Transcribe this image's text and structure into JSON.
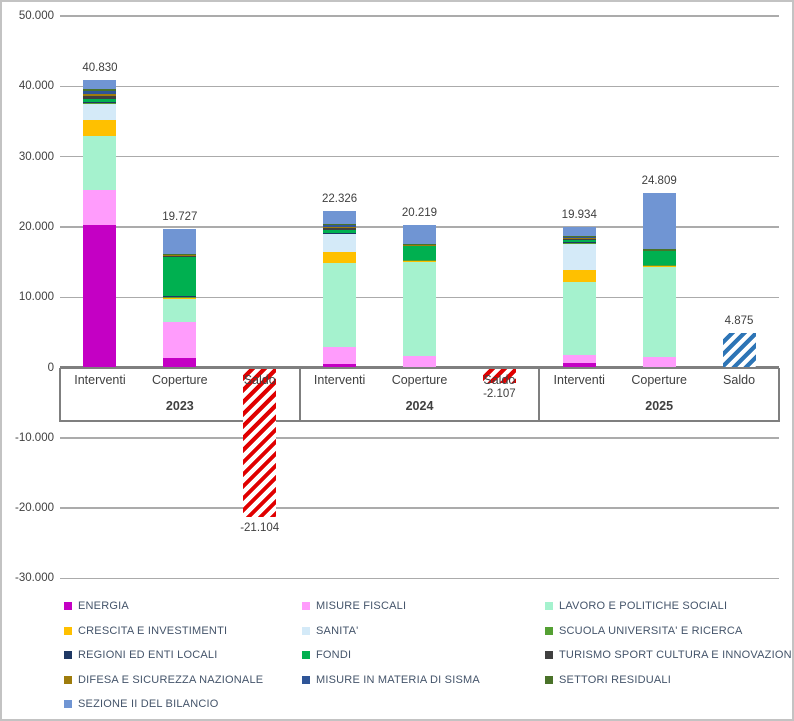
{
  "chart_data": {
    "type": "bar",
    "subtype": "stacked-column-with-hatched-saldo",
    "title": "",
    "xlabel": "",
    "ylabel": "",
    "ylim": [
      -30000,
      50000
    ],
    "grid": "horizontal",
    "legend_position": "bottom",
    "number_format": "it-IT thousands with dot",
    "axis_ticks": [
      {
        "value": 50000,
        "label": "50.000"
      },
      {
        "value": 40000,
        "label": "40.000"
      },
      {
        "value": 30000,
        "label": "30.000"
      },
      {
        "value": 20000,
        "label": "20.000"
      },
      {
        "value": 10000,
        "label": "10.000"
      },
      {
        "value": 0,
        "label": "0"
      },
      {
        "value": -10000,
        "label": "-10.000"
      },
      {
        "value": -20000,
        "label": "-20.000"
      },
      {
        "value": -30000,
        "label": "-30.000"
      }
    ],
    "series": [
      {
        "name": "ENERGIA",
        "color": "#c400c4"
      },
      {
        "name": "MISURE FISCALI",
        "color": "#ff9cfc"
      },
      {
        "name": "LAVORO E POLITICHE SOCIALI",
        "color": "#a5f2ce"
      },
      {
        "name": "CRESCITA E INVESTIMENTI",
        "color": "#ffc000"
      },
      {
        "name": "SANITA'",
        "color": "#d4eaf8"
      },
      {
        "name": "SCUOLA UNIVERSITA' E RICERCA",
        "color": "#54a033"
      },
      {
        "name": "REGIONI ED ENTI LOCALI",
        "color": "#1f3864"
      },
      {
        "name": "FONDI",
        "color": "#00b050"
      },
      {
        "name": "TURISMO SPORT CULTURA E INNOVAZIONE",
        "color": "#404040"
      },
      {
        "name": "DIFESA E SICUREZZA NAZIONALE",
        "color": "#9e7c0c"
      },
      {
        "name": "MISURE IN MATERIA DI SISMA",
        "color": "#2f5597"
      },
      {
        "name": "SETTORI RESIDUALI",
        "color": "#4a7229"
      },
      {
        "name": "SEZIONE II DEL BILANCIO",
        "color": "#7095d3"
      }
    ],
    "hatch_colors": {
      "red": "#e00000",
      "blue": "#2e75b6"
    },
    "groups": [
      {
        "year": "2023",
        "bars": [
          {
            "label": "Interventi",
            "total": 40830,
            "total_label": "40.830",
            "segments": {
              "ENERGIA": 20200,
              "MISURE FISCALI": 5000,
              "LAVORO E POLITICHE SOCIALI": 7700,
              "CRESCITA E INVESTIMENTI": 2350,
              "SANITA'": 2230,
              "SCUOLA UNIVERSITA' E RICERCA": 150,
              "REGIONI ED ENTI LOCALI": 200,
              "FONDI": 380,
              "TURISMO SPORT CULTURA E INNOVAZIONE": 470,
              "DIFESA E SICUREZZA NAZIONALE": 280,
              "MISURE IN MATERIA DI SISMA": 400,
              "SETTORI RESIDUALI": 190,
              "SEZIONE II DEL BILANCIO": 1280
            }
          },
          {
            "label": "Coperture",
            "total": 19727,
            "total_label": "19.727",
            "segments": {
              "ENERGIA": 1400,
              "MISURE FISCALI": 5100,
              "LAVORO E POLITICHE SOCIALI": 3300,
              "CRESCITA E INVESTIMENTI": 150,
              "SCUOLA UNIVERSITA' E RICERCA": 100,
              "REGIONI ED ENTI LOCALI": 150,
              "FONDI": 5500,
              "TURISMO SPORT CULTURA E INNOVAZIONE": 100,
              "DIFESA E SICUREZZA NAZIONALE": 200,
              "SETTORI RESIDUALI": 100,
              "SEZIONE II DEL BILANCIO": 3627
            }
          },
          {
            "label": "Saldo",
            "total": -21104,
            "total_label": "-21.104",
            "hatch": "red"
          }
        ]
      },
      {
        "year": "2024",
        "bars": [
          {
            "label": "Interventi",
            "total": 22326,
            "total_label": "22.326",
            "segments": {
              "ENERGIA": 500,
              "MISURE FISCALI": 2400,
              "LAVORO E POLITICHE SOCIALI": 11900,
              "CRESCITA E INVESTIMENTI": 1650,
              "SANITA'": 2500,
              "SCUOLA UNIVERSITA' E RICERCA": 120,
              "REGIONI ED ENTI LOCALI": 130,
              "FONDI": 400,
              "TURISMO SPORT CULTURA E INNOVAZIONE": 300,
              "DIFESA E SICUREZZA NAZIONALE": 150,
              "MISURE IN MATERIA DI SISMA": 250,
              "SETTORI RESIDUALI": 100,
              "SEZIONE II DEL BILANCIO": 1926
            }
          },
          {
            "label": "Coperture",
            "total": 20219,
            "total_label": "20.219",
            "segments": {
              "MISURE FISCALI": 1700,
              "LAVORO E POLITICHE SOCIALI": 13250,
              "CRESCITA E INVESTIMENTI": 200,
              "SCUOLA UNIVERSITA' E RICERCA": 100,
              "FONDI": 2050,
              "DIFESA E SICUREZZA NAZIONALE": 100,
              "SETTORI RESIDUALI": 150,
              "SEZIONE II DEL BILANCIO": 2669
            }
          },
          {
            "label": "Saldo",
            "total": -2107,
            "total_label": "-2.107",
            "hatch": "red"
          }
        ]
      },
      {
        "year": "2025",
        "bars": [
          {
            "label": "Interventi",
            "total": 19934,
            "total_label": "19.934",
            "segments": {
              "ENERGIA": 700,
              "MISURE FISCALI": 1100,
              "LAVORO E POLITICHE SOCIALI": 10300,
              "CRESCITA E INVESTIMENTI": 1800,
              "SANITA'": 3600,
              "SCUOLA UNIVERSITA' E RICERCA": 150,
              "REGIONI ED ENTI LOCALI": 150,
              "FONDI": 300,
              "TURISMO SPORT CULTURA E INNOVAZIONE": 200,
              "DIFESA E SICUREZZA NAZIONALE": 250,
              "MISURE IN MATERIA DI SISMA": 50,
              "SETTORI RESIDUALI": 100,
              "SEZIONE II DEL BILANCIO": 1234
            }
          },
          {
            "label": "Coperture",
            "total": 24809,
            "total_label": "24.809",
            "segments": {
              "MISURE FISCALI": 1500,
              "LAVORO E POLITICHE SOCIALI": 12800,
              "CRESCITA E INVESTIMENTI": 200,
              "SCUOLA UNIVERSITA' E RICERCA": 100,
              "FONDI": 2000,
              "SETTORI RESIDUALI": 300,
              "SEZIONE II DEL BILANCIO": 7909
            }
          },
          {
            "label": "Saldo",
            "total": 4875,
            "total_label": "4.875",
            "hatch": "blue"
          }
        ]
      }
    ]
  }
}
